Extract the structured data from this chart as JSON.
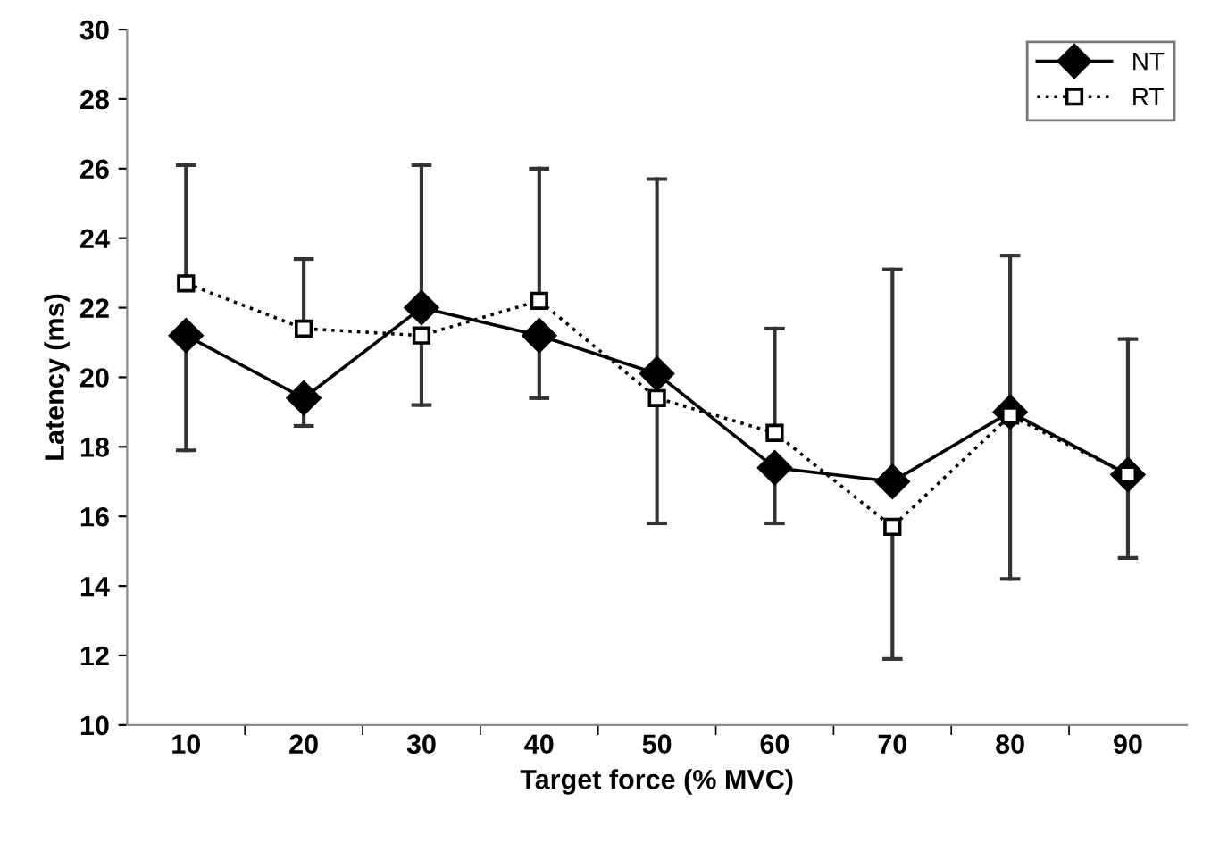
{
  "chart_data": {
    "type": "line",
    "xlabel": "Target force (% MVC)",
    "ylabel": "Latency (ms)",
    "categories": [
      "10",
      "20",
      "30",
      "40",
      "50",
      "60",
      "70",
      "80",
      "90"
    ],
    "series": [
      {
        "name": "NT",
        "color": "#000000",
        "marker": "diamond",
        "line_style": "solid",
        "values": [
          21.2,
          19.4,
          22.0,
          21.2,
          20.1,
          17.4,
          17.0,
          19.0,
          17.2
        ],
        "errors": [
          [
            17.9,
            21.2
          ],
          [
            18.6,
            19.4
          ],
          [
            22.0,
            26.1
          ],
          [
            19.4,
            21.2
          ],
          [
            20.1,
            25.7
          ],
          [
            15.8,
            17.4
          ],
          [
            17.0,
            23.1
          ],
          [
            19.0,
            23.5
          ],
          [
            17.2,
            21.1
          ]
        ]
      },
      {
        "name": "RT",
        "color": "#000000",
        "marker": "square",
        "line_style": "dotted",
        "values": [
          22.7,
          21.4,
          21.2,
          22.2,
          19.4,
          18.4,
          15.7,
          18.9,
          17.2
        ],
        "errors": [
          [
            22.7,
            26.1
          ],
          [
            21.4,
            23.4
          ],
          [
            19.2,
            21.2
          ],
          [
            22.2,
            26.0
          ],
          [
            15.8,
            19.4
          ],
          [
            18.4,
            21.4
          ],
          [
            11.9,
            15.7
          ],
          [
            14.2,
            18.9
          ],
          [
            14.8,
            17.2
          ]
        ]
      }
    ],
    "ylim": [
      10,
      30
    ],
    "yticks": [
      10,
      12,
      14,
      16,
      18,
      20,
      22,
      24,
      26,
      28,
      30
    ],
    "grid": false,
    "legend": "top right"
  }
}
